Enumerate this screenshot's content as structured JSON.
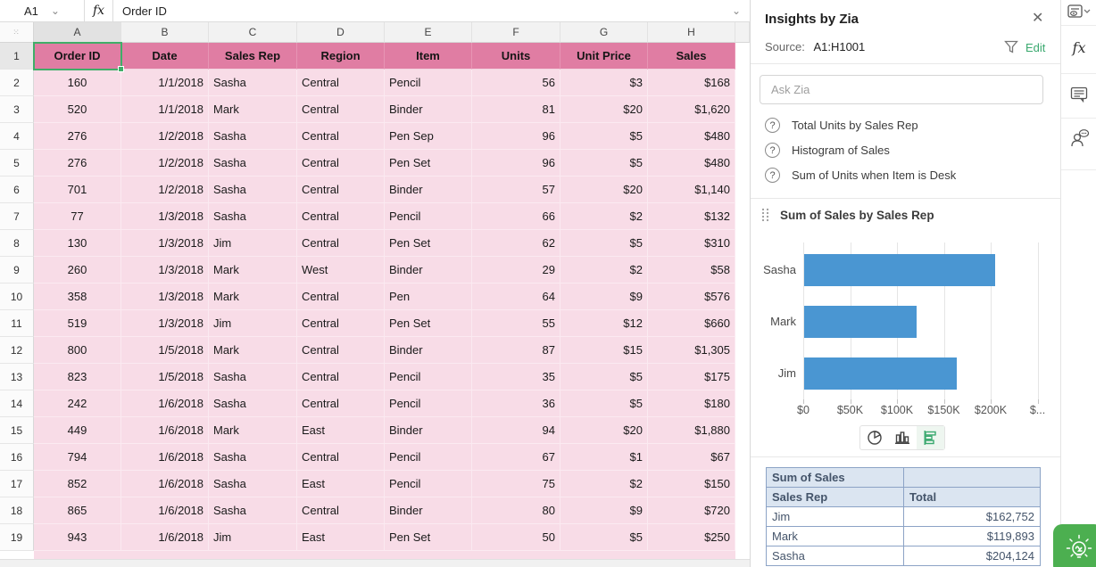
{
  "formula_bar": {
    "cell_ref": "A1",
    "fx_label": "fx",
    "value": "Order ID"
  },
  "grid": {
    "column_letters": [
      "A",
      "B",
      "C",
      "D",
      "E",
      "F",
      "G",
      "H"
    ],
    "header_row": [
      "Order ID",
      "Date",
      "Sales Rep",
      "Region",
      "Item",
      "Units",
      "Unit Price",
      "Sales"
    ],
    "rows": [
      {
        "n": "2",
        "cells": [
          "160",
          "1/1/2018",
          "Sasha",
          "Central",
          "Pencil",
          "56",
          "$3",
          "$168"
        ]
      },
      {
        "n": "3",
        "cells": [
          "520",
          "1/1/2018",
          "Mark",
          "Central",
          "Binder",
          "81",
          "$20",
          "$1,620"
        ]
      },
      {
        "n": "4",
        "cells": [
          "276",
          "1/2/2018",
          "Sasha",
          "Central",
          "Pen Sep",
          "96",
          "$5",
          "$480"
        ]
      },
      {
        "n": "5",
        "cells": [
          "276",
          "1/2/2018",
          "Sasha",
          "Central",
          "Pen Set",
          "96",
          "$5",
          "$480"
        ]
      },
      {
        "n": "6",
        "cells": [
          "701",
          "1/2/2018",
          "Sasha",
          "Central",
          "Binder",
          "57",
          "$20",
          "$1,140"
        ]
      },
      {
        "n": "7",
        "cells": [
          "77",
          "1/3/2018",
          "Sasha",
          "Central",
          "Pencil",
          "66",
          "$2",
          "$132"
        ]
      },
      {
        "n": "8",
        "cells": [
          "130",
          "1/3/2018",
          "Jim",
          "Central",
          "Pen Set",
          "62",
          "$5",
          "$310"
        ]
      },
      {
        "n": "9",
        "cells": [
          "260",
          "1/3/2018",
          "Mark",
          "West",
          "Binder",
          "29",
          "$2",
          "$58"
        ]
      },
      {
        "n": "10",
        "cells": [
          "358",
          "1/3/2018",
          "Mark",
          "Central",
          "Pen",
          "64",
          "$9",
          "$576"
        ]
      },
      {
        "n": "11",
        "cells": [
          "519",
          "1/3/2018",
          "Jim",
          "Central",
          "Pen Set",
          "55",
          "$12",
          "$660"
        ]
      },
      {
        "n": "12",
        "cells": [
          "800",
          "1/5/2018",
          "Mark",
          "Central",
          "Binder",
          "87",
          "$15",
          "$1,305"
        ]
      },
      {
        "n": "13",
        "cells": [
          "823",
          "1/5/2018",
          "Sasha",
          "Central",
          "Pencil",
          "35",
          "$5",
          "$175"
        ]
      },
      {
        "n": "14",
        "cells": [
          "242",
          "1/6/2018",
          "Sasha",
          "Central",
          "Pencil",
          "36",
          "$5",
          "$180"
        ]
      },
      {
        "n": "15",
        "cells": [
          "449",
          "1/6/2018",
          "Mark",
          "East",
          "Binder",
          "94",
          "$20",
          "$1,880"
        ]
      },
      {
        "n": "16",
        "cells": [
          "794",
          "1/6/2018",
          "Sasha",
          "Central",
          "Pencil",
          "67",
          "$1",
          "$67"
        ]
      },
      {
        "n": "17",
        "cells": [
          "852",
          "1/6/2018",
          "Sasha",
          "East",
          "Pencil",
          "75",
          "$2",
          "$150"
        ]
      },
      {
        "n": "18",
        "cells": [
          "865",
          "1/6/2018",
          "Sasha",
          "Central",
          "Binder",
          "80",
          "$9",
          "$720"
        ]
      },
      {
        "n": "19",
        "cells": [
          "943",
          "1/6/2018",
          "Jim",
          "East",
          "Pen Set",
          "50",
          "$5",
          "$250"
        ]
      }
    ],
    "selected_cell": "A1"
  },
  "panel": {
    "title": "Insights by Zia",
    "close_glyph": "✕",
    "source_label": "Source:",
    "source_range": "A1:H1001",
    "edit_label": "Edit",
    "ask_placeholder": "Ask Zia",
    "suggestion_icon": "?",
    "suggestions": [
      "Total Units by Sales Rep",
      "Histogram of Sales",
      "Sum of Units when Item is Desk"
    ],
    "card_title": "Sum of Sales by Sales Rep",
    "chart_type_icons": [
      "pie-chart-icon",
      "column-chart-icon",
      "bar-chart-icon"
    ],
    "table": {
      "title": "Sum of Sales",
      "columns": [
        "Sales Rep",
        "Total"
      ],
      "rows": [
        [
          "Jim",
          "$162,752"
        ],
        [
          "Mark",
          "$119,893"
        ],
        [
          "Sasha",
          "$204,124"
        ]
      ]
    }
  },
  "chart_data": {
    "type": "bar",
    "orientation": "horizontal",
    "title": "Sum of Sales by Sales Rep",
    "categories": [
      "Sasha",
      "Mark",
      "Jim"
    ],
    "values": [
      204124,
      119893,
      162752
    ],
    "x_tick_labels": [
      "$0",
      "$50K",
      "$100K",
      "$150K",
      "$200K",
      "$..."
    ],
    "x_tick_values": [
      0,
      50000,
      100000,
      150000,
      200000,
      250000
    ],
    "xlim": [
      0,
      250000
    ],
    "grid": true,
    "legend": false,
    "bar_color": "#4a96d2"
  },
  "rail_icons": [
    "sheet-view-icon",
    "formula-fx-icon",
    "comment-icon",
    "discuss-icon"
  ],
  "colors": {
    "accent_green": "#3aa96f",
    "zia_green": "#4caf50",
    "bar_blue": "#4a96d2",
    "header_pink": "#e07da3",
    "cell_pink": "#f8dce7",
    "table_header_bg": "#dbe5f1",
    "table_border": "#8ca3c6",
    "selection_green": "#3fae68"
  }
}
